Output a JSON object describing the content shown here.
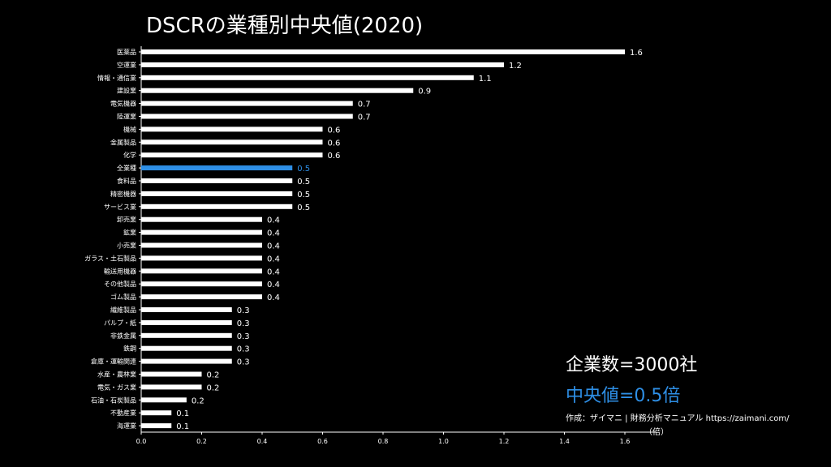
{
  "colors": {
    "background": "#000000",
    "bar": "#ffffff",
    "highlight": "#2e8fe6",
    "text": "#ffffff"
  },
  "info": {
    "companies": "企業数=3000社",
    "median": "中央値=0.5倍",
    "credit": "作成：ザイマニ | 財務分析マニュアル https://zaimani.com/",
    "unit": "（倍）"
  },
  "chart_data": {
    "type": "bar",
    "orientation": "horizontal",
    "title": "DSCRの業種別中央値(2020)",
    "xlabel": "（倍）",
    "xlim": [
      0,
      1.65
    ],
    "xticks": [
      "0.0",
      "0.2",
      "0.4",
      "0.6",
      "0.8",
      "1.0",
      "1.2",
      "1.4",
      "1.6"
    ],
    "highlight_category": "全業種",
    "grid": false,
    "categories": [
      "医薬品",
      "空運業",
      "情報・通信業",
      "建設業",
      "電気機器",
      "陸運業",
      "機械",
      "金属製品",
      "化学",
      "全業種",
      "食料品",
      "精密機器",
      "サービス業",
      "卸売業",
      "鉱業",
      "小売業",
      "ガラス・土石製品",
      "輸送用機器",
      "その他製品",
      "ゴム製品",
      "繊維製品",
      "パルプ・紙",
      "非鉄金属",
      "鉄鋼",
      "倉庫・運輸関連",
      "水産・農林業",
      "電気・ガス業",
      "石油・石炭製品",
      "不動産業",
      "海運業"
    ],
    "values": [
      1.6,
      1.2,
      1.1,
      0.9,
      0.7,
      0.7,
      0.6,
      0.6,
      0.6,
      0.5,
      0.5,
      0.5,
      0.5,
      0.4,
      0.4,
      0.4,
      0.4,
      0.4,
      0.4,
      0.4,
      0.3,
      0.3,
      0.3,
      0.3,
      0.3,
      0.2,
      0.2,
      0.15,
      0.1,
      0.1
    ],
    "value_labels": [
      "1.6",
      "1.2",
      "1.1",
      "0.9",
      "0.7",
      "0.7",
      "0.6",
      "0.6",
      "0.6",
      "0.5",
      "0.5",
      "0.5",
      "0.5",
      "0.4",
      "0.4",
      "0.4",
      "0.4",
      "0.4",
      "0.4",
      "0.4",
      "0.3",
      "0.3",
      "0.3",
      "0.3",
      "0.3",
      "0.2",
      "0.2",
      "0.2",
      "0.1",
      "0.1"
    ]
  }
}
